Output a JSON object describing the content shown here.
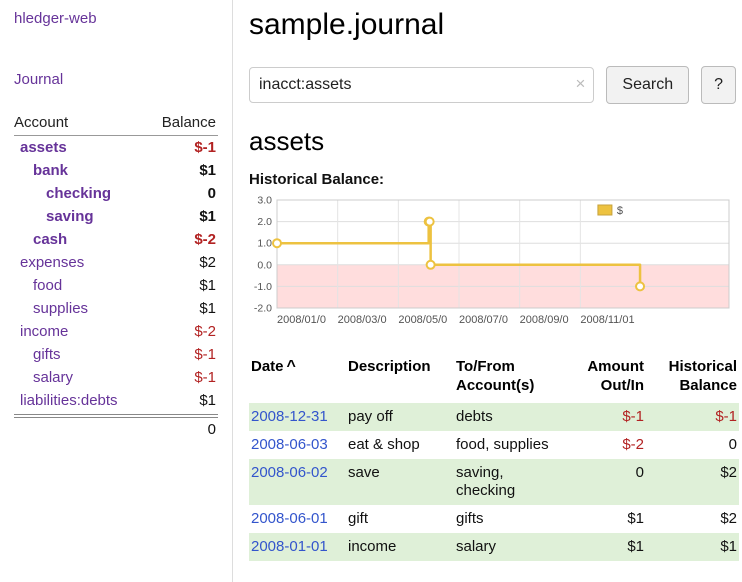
{
  "colors": {
    "accent_purple": "#663399",
    "link_blue": "#3355cc",
    "negative_red": "#b22222",
    "row_highlight_green": "#dff0d8",
    "chart_line_gold": "#edc240",
    "chart_negative_pink": "#ffdddd"
  },
  "sidebar": {
    "brand": "hledger-web",
    "journal_link": "Journal",
    "account_header": "Account",
    "balance_header": "Balance",
    "accounts": [
      {
        "name": "assets",
        "balance": "$-1",
        "level": 1,
        "bold": true,
        "negative": true
      },
      {
        "name": "bank",
        "balance": "$1",
        "level": 2,
        "bold": true,
        "negative": false
      },
      {
        "name": "checking",
        "balance": "0",
        "level": 3,
        "bold": true,
        "negative": false
      },
      {
        "name": "saving",
        "balance": "$1",
        "level": 3,
        "bold": true,
        "negative": false
      },
      {
        "name": "cash",
        "balance": "$-2",
        "level": 2,
        "bold": true,
        "negative": true
      },
      {
        "name": "expenses",
        "balance": "$2",
        "level": 1,
        "bold": false,
        "negative": false
      },
      {
        "name": "food",
        "balance": "$1",
        "level": 2,
        "bold": false,
        "negative": false
      },
      {
        "name": "supplies",
        "balance": "$1",
        "level": 2,
        "bold": false,
        "negative": false
      },
      {
        "name": "income",
        "balance": "$-2",
        "level": 1,
        "bold": false,
        "negative": true
      },
      {
        "name": "gifts",
        "balance": "$-1",
        "level": 2,
        "bold": false,
        "negative": true
      },
      {
        "name": "salary",
        "balance": "$-1",
        "level": 2,
        "bold": false,
        "negative": true
      },
      {
        "name": "liabilities:debts",
        "balance": "$1",
        "level": 1,
        "bold": false,
        "negative": false
      }
    ],
    "total": "0"
  },
  "main": {
    "title": "sample.journal",
    "search": {
      "value": "inacct:assets",
      "clear_icon": "×",
      "button_label": "Search",
      "help_label": "?"
    },
    "account_heading": "assets",
    "chart_title": "Historical Balance:"
  },
  "chart_data": {
    "type": "step-line",
    "title": "Historical Balance",
    "ylim": [
      -2,
      3
    ],
    "y_ticks": [
      "3.0",
      "2.0",
      "1.0",
      "0.0",
      "-1.0",
      "-2.0"
    ],
    "xlim_months": [
      0,
      14.9
    ],
    "x_ticks": [
      {
        "month": 0,
        "label": "2008/01/0"
      },
      {
        "month": 2,
        "label": "2008/03/0"
      },
      {
        "month": 4,
        "label": "2008/05/0"
      },
      {
        "month": 6,
        "label": "2008/07/0"
      },
      {
        "month": 8,
        "label": "2008/09/0"
      },
      {
        "month": 10,
        "label": "2008/11/01"
      }
    ],
    "series": [
      {
        "name": "$",
        "color": "#edc240",
        "points": [
          [
            "2008-01-01",
            1
          ],
          [
            "2008-06-01",
            2
          ],
          [
            "2008-06-02",
            2
          ],
          [
            "2008-06-03",
            0
          ],
          [
            "2008-12-31",
            -1
          ]
        ]
      }
    ],
    "legend": {
      "label": "$",
      "position": "top-right"
    },
    "negative_region_fill": "#ffdddd",
    "grid": true
  },
  "table": {
    "headers": {
      "date": "Date",
      "sort_indicator": "^",
      "description": "Description",
      "accounts_line1": "To/From",
      "accounts_line2": "Account(s)",
      "amount_line1": "Amount",
      "amount_line2": "Out/In",
      "balance_line1": "Historical",
      "balance_line2": "Balance"
    },
    "rows": [
      {
        "date": "2008-12-31",
        "description": "pay off",
        "accounts": "debts",
        "amount": "$-1",
        "balance": "$-1",
        "amount_negative": true,
        "balance_negative": true
      },
      {
        "date": "2008-06-03",
        "description": "eat & shop",
        "accounts": "food, supplies",
        "amount": "$-2",
        "balance": "0",
        "amount_negative": true,
        "balance_negative": false
      },
      {
        "date": "2008-06-02",
        "description": "save",
        "accounts": "saving, checking",
        "amount": "0",
        "balance": "$2",
        "amount_negative": false,
        "balance_negative": false
      },
      {
        "date": "2008-06-01",
        "description": "gift",
        "accounts": "gifts",
        "amount": "$1",
        "balance": "$2",
        "amount_negative": false,
        "balance_negative": false
      },
      {
        "date": "2008-01-01",
        "description": "income",
        "accounts": "salary",
        "amount": "$1",
        "balance": "$1",
        "amount_negative": false,
        "balance_negative": false
      }
    ]
  }
}
